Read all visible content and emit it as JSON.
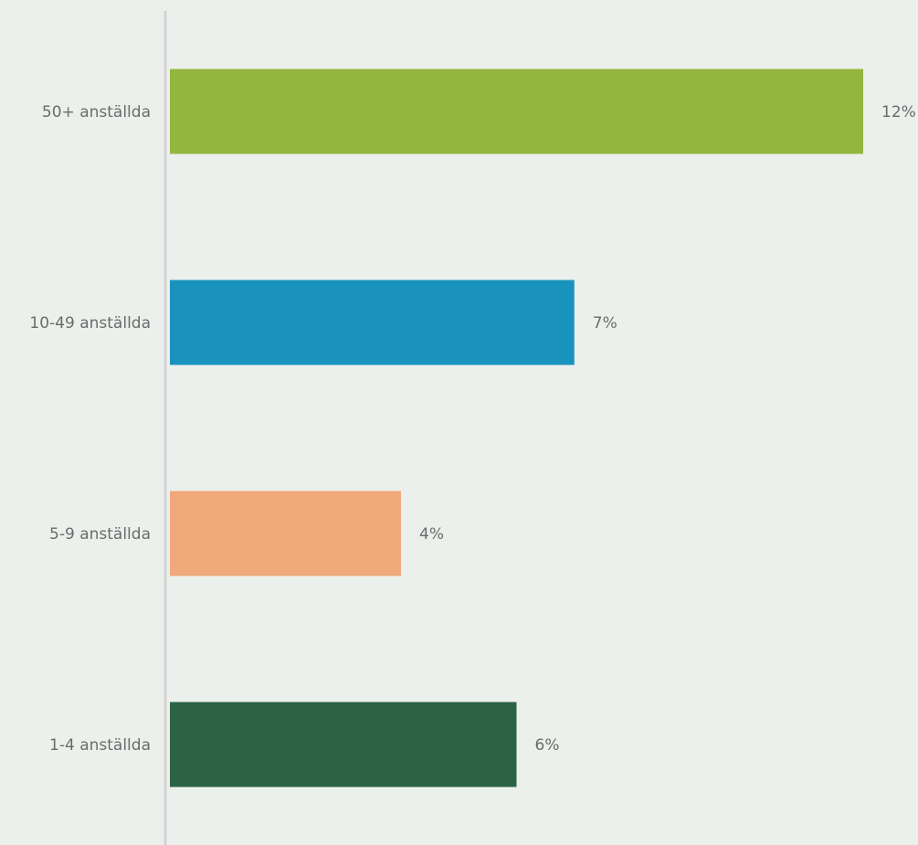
{
  "chart_data": {
    "type": "bar",
    "orientation": "horizontal",
    "categories": [
      "50+ anställda",
      "10-49 anställda",
      "5-9 anställda",
      "1-4 anställda"
    ],
    "values": [
      12,
      7,
      4,
      6
    ],
    "value_labels": [
      "12%",
      "7%",
      "4%",
      "6%"
    ],
    "colors": [
      "#93b63f",
      "#1a92be",
      "#efa97a",
      "#2b6344"
    ],
    "xlim": [
      0,
      12
    ],
    "grid": false,
    "legend": "none"
  }
}
